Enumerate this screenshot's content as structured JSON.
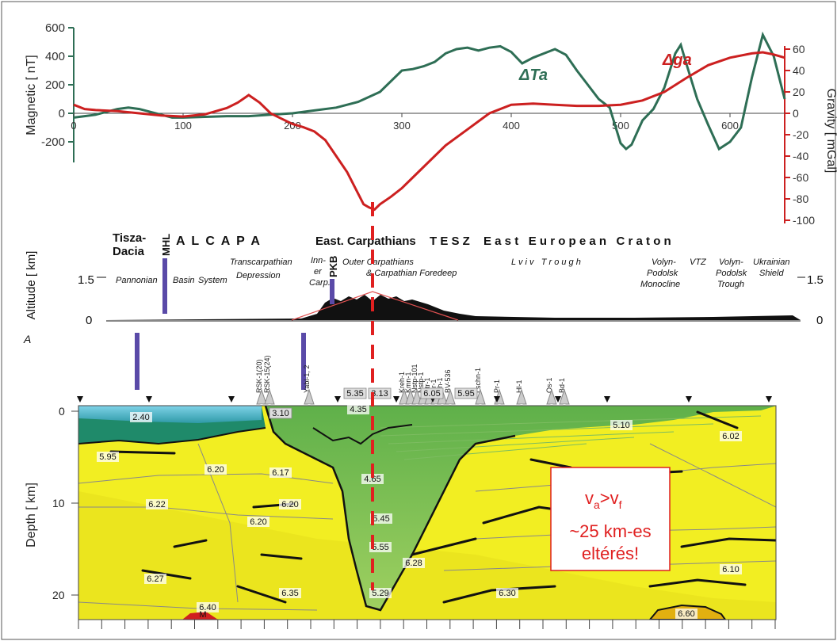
{
  "top_chart": {
    "magnetic_axis_label": "Magnetic [ nT]",
    "gravity_axis_label": "Gravity [ mGal]",
    "magnetic_ticks": [
      "600",
      "400",
      "200",
      "0",
      "-200"
    ],
    "gravity_ticks": [
      "60",
      "40",
      "20",
      "0",
      "-20",
      "-40",
      "-60",
      "-80",
      "-100"
    ],
    "x_ticks": [
      "0",
      "100",
      "200",
      "300",
      "400",
      "500",
      "600"
    ],
    "series_magnetic_label": "ΔTa",
    "series_gravity_label": "Δga",
    "magnetic_color": "#2e6e55",
    "gravity_color": "#cc2020"
  },
  "units_panel": {
    "tisza_label_1": "Tisza-",
    "tisza_label_2": "Dacia",
    "mhl_label": "MHL",
    "alcapa_label": "A L C A P A",
    "east_carp_label": "East. Carpathians",
    "tesz_label": "T E S Z",
    "eec_label": "E a s t   E u r o p e a n   C r a t o n",
    "pannonian_label": "Pannonian",
    "basin_label": "Basin",
    "system_label": "System",
    "transcarp_1": "Transcarpathian",
    "transcarp_2": "Depression",
    "inner_1": "Inn-",
    "inner_2": "er",
    "inner_3": "Carp.",
    "pkb_label": "PKB",
    "outer_1": "Outer Carpathians",
    "outer_2": "& Carpathian Foredeep",
    "lviv_label": "L v i v   T r o u g h",
    "volyn_mono_1": "Volyn-",
    "volyn_mono_2": "Podolsk",
    "volyn_mono_3": "Monocline",
    "vtz_label": "VTZ",
    "volyn_trough_1": "Volyn-",
    "volyn_trough_2": "Podolsk",
    "volyn_trough_3": "Trough",
    "ukr_1": "Ukrainian",
    "ukr_2": "Shield",
    "altitude_label": "Altitude [ km]",
    "alt_tick_15": "1.5",
    "alt_tick_0": "0"
  },
  "wells": [
    "RSK-1(20)",
    "RSK-15(24)",
    "Yabl-1, 2",
    "Kreh-1",
    "Kmn-1",
    "Nstp-101",
    "Nstp-1",
    "Str-1",
    "Cr-1",
    "Ch-1",
    "BV-536",
    "Lschn-1",
    "Pr-1",
    "Hl-1",
    "Os-1",
    "Bd-1"
  ],
  "depth_section": {
    "depth_axis_label": "Depth [ km]",
    "depth_ticks": [
      "0",
      "10",
      "20"
    ],
    "velocity_labels": [
      "2.40",
      "3.10",
      "5.35",
      "3.13",
      "6.05",
      "5.95",
      "4.35",
      "5.10",
      "6.02",
      "5.95",
      "6.20",
      "6.17",
      "4.65",
      "5.45",
      "6.20",
      "6.22",
      "6.20",
      "5.55",
      "6.28",
      "6.27",
      "6.35",
      "5.29",
      "6.30",
      "6.10",
      "6.40",
      "6.60",
      "M"
    ]
  },
  "annotation": {
    "line1_main": "v",
    "line1_sub_a": "a",
    "line1_gt": ">v",
    "line1_sub_f": "f",
    "line2": "~25 km-es",
    "line3": "eltérés!",
    "color": "#e02020"
  },
  "chart_data": [
    {
      "type": "line",
      "title": "",
      "xlabel": "",
      "xlim": [
        0,
        650
      ],
      "y_left": {
        "label": "Magnetic [ nT]",
        "range": [
          -300,
          650
        ]
      },
      "y_right": {
        "label": "Gravity [ mGal]",
        "range": [
          -100,
          70
        ]
      },
      "series": [
        {
          "name": "ΔTa",
          "axis": "left",
          "x": [
            0,
            10,
            20,
            30,
            40,
            50,
            60,
            70,
            80,
            90,
            100,
            120,
            140,
            160,
            180,
            200,
            220,
            240,
            260,
            280,
            300,
            310,
            320,
            330,
            340,
            350,
            360,
            370,
            380,
            390,
            400,
            410,
            420,
            430,
            440,
            450,
            460,
            470,
            480,
            490,
            500,
            505,
            510,
            520,
            530,
            540,
            550,
            555,
            560,
            570,
            580,
            590,
            600,
            610,
            620,
            630,
            640,
            650
          ],
          "y": [
            -30,
            -20,
            -10,
            10,
            30,
            40,
            30,
            10,
            -10,
            -30,
            -30,
            -25,
            -20,
            -20,
            -10,
            0,
            20,
            40,
            80,
            150,
            300,
            310,
            330,
            360,
            420,
            450,
            460,
            440,
            460,
            470,
            430,
            350,
            390,
            420,
            450,
            410,
            300,
            200,
            100,
            40,
            -210,
            -250,
            -220,
            -50,
            30,
            180,
            420,
            480,
            350,
            100,
            -80,
            -250,
            -200,
            -100,
            250,
            550,
            400,
            100
          ]
        },
        {
          "name": "Δga",
          "axis": "right",
          "x": [
            0,
            10,
            20,
            40,
            60,
            80,
            100,
            120,
            140,
            150,
            160,
            170,
            180,
            190,
            200,
            210,
            220,
            230,
            240,
            250,
            260,
            265,
            270,
            275,
            280,
            290,
            300,
            310,
            320,
            340,
            360,
            380,
            400,
            420,
            440,
            460,
            480,
            500,
            520,
            540,
            560,
            580,
            600,
            620,
            630,
            640,
            650
          ],
          "y": [
            8,
            4,
            3,
            2,
            0,
            -2,
            -3,
            -1,
            5,
            10,
            17,
            10,
            0,
            -5,
            -10,
            -13,
            -17,
            -25,
            -40,
            -55,
            -75,
            -85,
            -88,
            -90,
            -85,
            -78,
            -70,
            -60,
            -50,
            -30,
            -15,
            0,
            8,
            9,
            8,
            7,
            7,
            8,
            12,
            20,
            33,
            45,
            52,
            56,
            57,
            55,
            52
          ]
        }
      ]
    }
  ]
}
